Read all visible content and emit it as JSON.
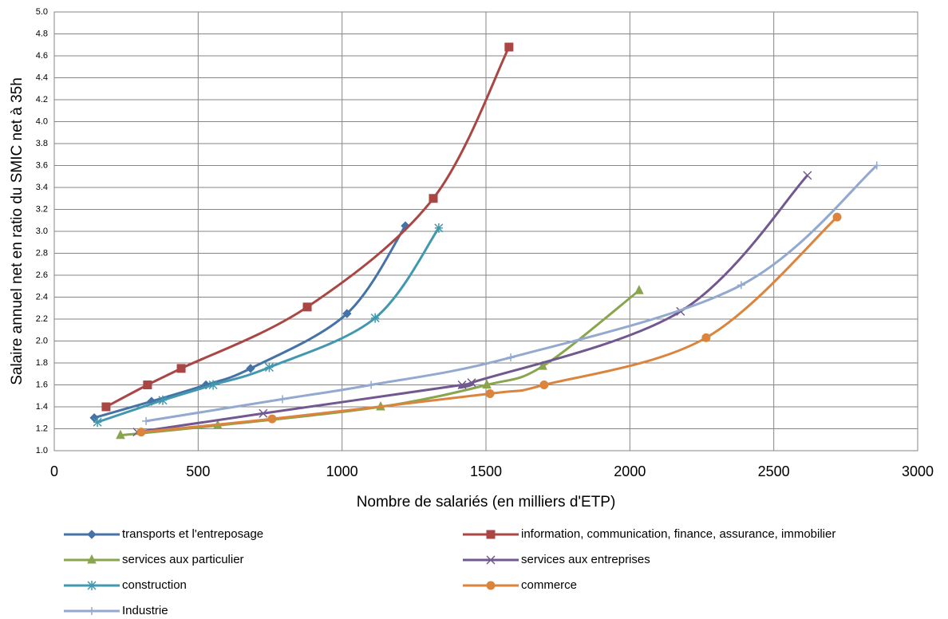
{
  "chart_data": {
    "type": "scatter",
    "smooth": true,
    "grid": true,
    "xlabel": "Nombre de salariés (en milliers d'ETP)",
    "ylabel": "Salaire annuel net en ratio du SMIC net à 35h",
    "xlim": [
      0,
      3000
    ],
    "xticks": [
      0,
      500,
      1000,
      1500,
      2000,
      2500,
      3000
    ],
    "ylim": [
      1,
      5
    ],
    "yticks": [
      {
        "value": 1,
        "label": "1.0"
      },
      1.2,
      1.4,
      1.6,
      1.8,
      {
        "value": 2,
        "label": "2.0"
      },
      2.2,
      2.4,
      2.6,
      2.8,
      {
        "value": 3,
        "label": "3.0"
      },
      3.2,
      3.4,
      3.6,
      3.8,
      {
        "value": 4,
        "label": "4.0"
      },
      4.2,
      4.4,
      4.6,
      4.8,
      {
        "value": 5,
        "label": "5.0"
      }
    ],
    "series": [
      {
        "name": "transports et l'entreposage",
        "color": "#4572a7",
        "marker": "diamond",
        "x": [
          139,
          338,
          527,
          682,
          1017,
          1220
        ],
        "values": [
          1.3,
          1.45,
          1.6,
          1.75,
          2.25,
          3.05
        ]
      },
      {
        "name": "information, communication, finance, assurance, immobilier",
        "color": "#aa4643",
        "marker": "square",
        "x": [
          180,
          324,
          441,
          879,
          1317,
          1580
        ],
        "values": [
          1.4,
          1.6,
          1.75,
          2.31,
          3.3,
          4.68
        ]
      },
      {
        "name": "services aux particulier",
        "color": "#89a54e",
        "marker": "triangle",
        "x": [
          230,
          568,
          1134,
          1503,
          1697,
          2032
        ],
        "values": [
          1.14,
          1.23,
          1.4,
          1.6,
          1.77,
          2.46
        ]
      },
      {
        "name": "services aux entreprises",
        "color": "#71588f",
        "marker": "x",
        "x": [
          288,
          726,
          1417,
          1450,
          2176,
          2617
        ],
        "values": [
          1.17,
          1.34,
          1.6,
          1.62,
          2.27,
          3.51
        ]
      },
      {
        "name": "construction",
        "color": "#4198af",
        "marker": "star",
        "x": [
          150,
          377,
          552,
          747,
          1115,
          1336
        ],
        "values": [
          1.26,
          1.46,
          1.6,
          1.76,
          2.21,
          3.03
        ]
      },
      {
        "name": "commerce",
        "color": "#db843d",
        "marker": "circle",
        "x": [
          302,
          757,
          1514,
          1702,
          2265,
          2720
        ],
        "values": [
          1.17,
          1.29,
          1.52,
          1.6,
          2.03,
          3.13
        ]
      },
      {
        "name": "Industrie",
        "color": "#93a9cf",
        "marker": "plus",
        "x": [
          319,
          793,
          1101,
          1586,
          2387,
          2858
        ],
        "values": [
          1.27,
          1.47,
          1.6,
          1.85,
          2.51,
          3.6
        ]
      }
    ]
  }
}
